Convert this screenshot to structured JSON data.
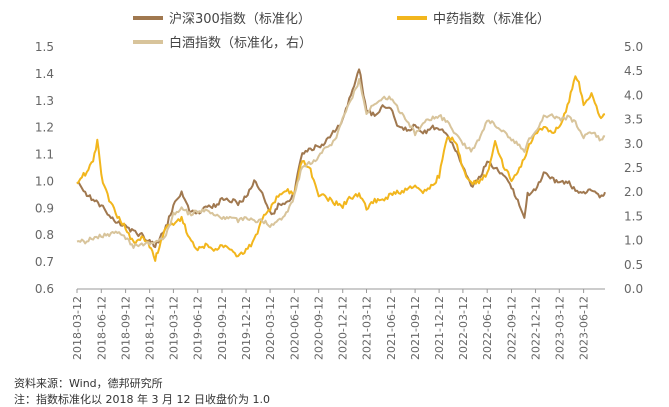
{
  "chart_data": {
    "type": "line",
    "x_start": "2018-03-12",
    "x_tick_labels": [
      "2018-03-12",
      "2018-06-12",
      "2018-09-12",
      "2018-12-12",
      "2019-03-12",
      "2019-06-12",
      "2019-09-12",
      "2019-12-12",
      "2020-03-12",
      "2020-06-12",
      "2020-09-12",
      "2020-12-12",
      "2021-03-12",
      "2021-06-12",
      "2021-09-12",
      "2021-12-12",
      "2022-03-12",
      "2022-06-12",
      "2022-09-12",
      "2022-12-12",
      "2023-03-12",
      "2023-06-12"
    ],
    "left_axis": {
      "ticks": [
        "0.6",
        "0.7",
        "0.8",
        "0.9",
        "1.0",
        "1.1",
        "1.2",
        "1.3",
        "1.4",
        "1.5"
      ],
      "ylim": [
        0.6,
        1.5
      ]
    },
    "right_axis": {
      "ticks": [
        "0.0",
        "0.5",
        "1.0",
        "1.5",
        "2.0",
        "2.5",
        "3.0",
        "3.5",
        "4.0",
        "4.5",
        "5.0"
      ],
      "ylim": [
        0.0,
        5.0
      ]
    },
    "series": [
      {
        "name": "沪深300指数（标准化）",
        "axis": "left",
        "color": "#A0784F",
        "points": [
          [
            "2018-03-12",
            1.0
          ],
          [
            "2018-04-12",
            0.96
          ],
          [
            "2018-05-12",
            0.93
          ],
          [
            "2018-06-12",
            0.91
          ],
          [
            "2018-07-12",
            0.87
          ],
          [
            "2018-08-12",
            0.85
          ],
          [
            "2018-09-12",
            0.83
          ],
          [
            "2018-10-12",
            0.81
          ],
          [
            "2018-11-12",
            0.8
          ],
          [
            "2018-12-12",
            0.78
          ],
          [
            "2019-01-02",
            0.76
          ],
          [
            "2019-02-12",
            0.83
          ],
          [
            "2019-03-12",
            0.91
          ],
          [
            "2019-04-12",
            0.96
          ],
          [
            "2019-05-12",
            0.89
          ],
          [
            "2019-06-12",
            0.88
          ],
          [
            "2019-07-12",
            0.9
          ],
          [
            "2019-08-12",
            0.91
          ],
          [
            "2019-09-12",
            0.93
          ],
          [
            "2019-10-12",
            0.93
          ],
          [
            "2019-11-12",
            0.92
          ],
          [
            "2019-12-12",
            0.94
          ],
          [
            "2020-01-12",
            1.0
          ],
          [
            "2020-02-12",
            0.95
          ],
          [
            "2020-03-12",
            0.89
          ],
          [
            "2020-03-23",
            0.88
          ],
          [
            "2020-04-12",
            0.91
          ],
          [
            "2020-05-12",
            0.92
          ],
          [
            "2020-06-12",
            0.96
          ],
          [
            "2020-07-12",
            1.11
          ],
          [
            "2020-08-12",
            1.12
          ],
          [
            "2020-09-12",
            1.13
          ],
          [
            "2020-10-12",
            1.15
          ],
          [
            "2020-11-12",
            1.19
          ],
          [
            "2020-12-12",
            1.23
          ],
          [
            "2021-01-12",
            1.32
          ],
          [
            "2021-02-12",
            1.42
          ],
          [
            "2021-03-12",
            1.26
          ],
          [
            "2021-04-12",
            1.25
          ],
          [
            "2021-05-12",
            1.28
          ],
          [
            "2021-06-12",
            1.27
          ],
          [
            "2021-07-12",
            1.2
          ],
          [
            "2021-08-12",
            1.19
          ],
          [
            "2021-09-12",
            1.21
          ],
          [
            "2021-10-12",
            1.18
          ],
          [
            "2021-11-12",
            1.2
          ],
          [
            "2021-12-12",
            1.2
          ],
          [
            "2022-01-12",
            1.17
          ],
          [
            "2022-02-12",
            1.12
          ],
          [
            "2022-03-12",
            1.05
          ],
          [
            "2022-04-12",
            0.98
          ],
          [
            "2022-05-12",
            1.01
          ],
          [
            "2022-06-12",
            1.07
          ],
          [
            "2022-07-12",
            1.05
          ],
          [
            "2022-08-12",
            1.02
          ],
          [
            "2022-09-12",
            0.98
          ],
          [
            "2022-10-12",
            0.91
          ],
          [
            "2022-10-31",
            0.87
          ],
          [
            "2022-11-12",
            0.95
          ],
          [
            "2022-12-12",
            0.97
          ],
          [
            "2023-01-12",
            1.03
          ],
          [
            "2023-02-12",
            1.01
          ],
          [
            "2023-03-12",
            0.99
          ],
          [
            "2023-04-12",
            1.0
          ],
          [
            "2023-05-12",
            0.97
          ],
          [
            "2023-06-12",
            0.96
          ],
          [
            "2023-07-12",
            0.97
          ],
          [
            "2023-08-12",
            0.94
          ],
          [
            "2023-08-25",
            0.94
          ],
          [
            "2023-09-01",
            0.96
          ]
        ]
      },
      {
        "name": "中药指数（标准化）",
        "axis": "left",
        "color": "#F2B61D",
        "points": [
          [
            "2018-03-12",
            1.0
          ],
          [
            "2018-04-12",
            1.03
          ],
          [
            "2018-05-12",
            1.07
          ],
          [
            "2018-05-28",
            1.15
          ],
          [
            "2018-06-12",
            1.02
          ],
          [
            "2018-07-12",
            0.93
          ],
          [
            "2018-08-12",
            0.87
          ],
          [
            "2018-09-12",
            0.83
          ],
          [
            "2018-10-12",
            0.77
          ],
          [
            "2018-11-12",
            0.79
          ],
          [
            "2018-12-12",
            0.76
          ],
          [
            "2019-01-02",
            0.71
          ],
          [
            "2019-01-12",
            0.74
          ],
          [
            "2019-02-12",
            0.83
          ],
          [
            "2019-03-12",
            0.84
          ],
          [
            "2019-04-12",
            0.86
          ],
          [
            "2019-05-12",
            0.79
          ],
          [
            "2019-06-12",
            0.75
          ],
          [
            "2019-07-12",
            0.76
          ],
          [
            "2019-08-12",
            0.74
          ],
          [
            "2019-09-12",
            0.76
          ],
          [
            "2019-10-12",
            0.75
          ],
          [
            "2019-11-12",
            0.72
          ],
          [
            "2019-12-12",
            0.74
          ],
          [
            "2020-01-12",
            0.78
          ],
          [
            "2020-02-12",
            0.86
          ],
          [
            "2020-03-12",
            0.9
          ],
          [
            "2020-04-12",
            0.95
          ],
          [
            "2020-05-12",
            0.97
          ],
          [
            "2020-06-12",
            0.95
          ],
          [
            "2020-07-12",
            1.08
          ],
          [
            "2020-08-12",
            1.04
          ],
          [
            "2020-09-12",
            0.95
          ],
          [
            "2020-10-12",
            0.94
          ],
          [
            "2020-11-12",
            0.92
          ],
          [
            "2020-12-12",
            0.91
          ],
          [
            "2021-01-12",
            0.94
          ],
          [
            "2021-02-12",
            0.95
          ],
          [
            "2021-03-12",
            0.9
          ],
          [
            "2021-04-12",
            0.93
          ],
          [
            "2021-05-12",
            0.93
          ],
          [
            "2021-06-12",
            0.95
          ],
          [
            "2021-07-12",
            0.96
          ],
          [
            "2021-08-12",
            0.97
          ],
          [
            "2021-09-12",
            0.98
          ],
          [
            "2021-10-12",
            0.96
          ],
          [
            "2021-11-12",
            0.98
          ],
          [
            "2021-12-12",
            1.02
          ],
          [
            "2022-01-12",
            1.17
          ],
          [
            "2022-02-12",
            1.15
          ],
          [
            "2022-03-12",
            1.05
          ],
          [
            "2022-04-12",
            0.99
          ],
          [
            "2022-05-12",
            1.0
          ],
          [
            "2022-06-12",
            1.03
          ],
          [
            "2022-07-12",
            1.15
          ],
          [
            "2022-08-12",
            1.06
          ],
          [
            "2022-09-12",
            1.01
          ],
          [
            "2022-10-12",
            1.05
          ],
          [
            "2022-11-12",
            1.12
          ],
          [
            "2022-12-12",
            1.18
          ],
          [
            "2023-01-12",
            1.2
          ],
          [
            "2023-02-12",
            1.18
          ],
          [
            "2023-03-12",
            1.2
          ],
          [
            "2023-04-12",
            1.28
          ],
          [
            "2023-05-12",
            1.4
          ],
          [
            "2023-05-25",
            1.37
          ],
          [
            "2023-06-12",
            1.28
          ],
          [
            "2023-07-12",
            1.33
          ],
          [
            "2023-08-12",
            1.24
          ],
          [
            "2023-09-01",
            1.25
          ]
        ]
      },
      {
        "name": "白酒指数（标准化，右）",
        "axis": "right",
        "color": "#D8C49B",
        "points": [
          [
            "2018-03-12",
            1.0
          ],
          [
            "2018-04-12",
            0.98
          ],
          [
            "2018-05-12",
            1.06
          ],
          [
            "2018-06-12",
            1.1
          ],
          [
            "2018-07-12",
            1.13
          ],
          [
            "2018-08-12",
            1.18
          ],
          [
            "2018-09-12",
            1.07
          ],
          [
            "2018-10-12",
            0.88
          ],
          [
            "2018-11-12",
            0.92
          ],
          [
            "2018-12-12",
            0.93
          ],
          [
            "2019-01-12",
            0.98
          ],
          [
            "2019-02-12",
            1.1
          ],
          [
            "2019-03-12",
            1.55
          ],
          [
            "2019-04-12",
            1.68
          ],
          [
            "2019-05-12",
            1.55
          ],
          [
            "2019-06-12",
            1.6
          ],
          [
            "2019-07-12",
            1.62
          ],
          [
            "2019-08-12",
            1.54
          ],
          [
            "2019-09-12",
            1.46
          ],
          [
            "2019-10-12",
            1.5
          ],
          [
            "2019-11-12",
            1.42
          ],
          [
            "2019-12-12",
            1.47
          ],
          [
            "2020-01-12",
            1.4
          ],
          [
            "2020-02-12",
            1.42
          ],
          [
            "2020-03-12",
            1.3
          ],
          [
            "2020-04-12",
            1.4
          ],
          [
            "2020-05-12",
            1.55
          ],
          [
            "2020-06-12",
            1.92
          ],
          [
            "2020-07-12",
            2.55
          ],
          [
            "2020-08-12",
            2.6
          ],
          [
            "2020-09-12",
            2.72
          ],
          [
            "2020-10-12",
            2.95
          ],
          [
            "2020-11-12",
            3.05
          ],
          [
            "2020-12-12",
            3.5
          ],
          [
            "2021-01-12",
            3.9
          ],
          [
            "2021-02-12",
            4.3
          ],
          [
            "2021-03-12",
            3.65
          ],
          [
            "2021-04-12",
            3.82
          ],
          [
            "2021-05-12",
            3.95
          ],
          [
            "2021-06-12",
            3.95
          ],
          [
            "2021-07-12",
            3.7
          ],
          [
            "2021-08-12",
            3.5
          ],
          [
            "2021-09-12",
            3.2
          ],
          [
            "2021-10-12",
            3.45
          ],
          [
            "2021-11-12",
            3.52
          ],
          [
            "2021-12-12",
            3.58
          ],
          [
            "2022-01-12",
            3.45
          ],
          [
            "2022-02-12",
            3.2
          ],
          [
            "2022-03-12",
            3.0
          ],
          [
            "2022-04-12",
            2.85
          ],
          [
            "2022-05-12",
            3.1
          ],
          [
            "2022-06-12",
            3.48
          ],
          [
            "2022-07-12",
            3.4
          ],
          [
            "2022-08-12",
            3.25
          ],
          [
            "2022-09-12",
            3.1
          ],
          [
            "2022-10-12",
            2.98
          ],
          [
            "2022-10-31",
            2.8
          ],
          [
            "2022-11-12",
            3.05
          ],
          [
            "2022-12-12",
            3.25
          ],
          [
            "2023-01-12",
            3.55
          ],
          [
            "2023-02-12",
            3.6
          ],
          [
            "2023-03-12",
            3.5
          ],
          [
            "2023-04-12",
            3.55
          ],
          [
            "2023-05-12",
            3.45
          ],
          [
            "2023-06-12",
            3.15
          ],
          [
            "2023-07-12",
            3.25
          ],
          [
            "2023-08-12",
            3.1
          ],
          [
            "2023-09-01",
            3.15
          ]
        ]
      }
    ],
    "legend_position": "top"
  },
  "footer": {
    "source": "资料来源：Wind，德邦研究所",
    "note": "注：指数标准化以 2018 年 3 月 12 日收盘价为 1.0"
  }
}
